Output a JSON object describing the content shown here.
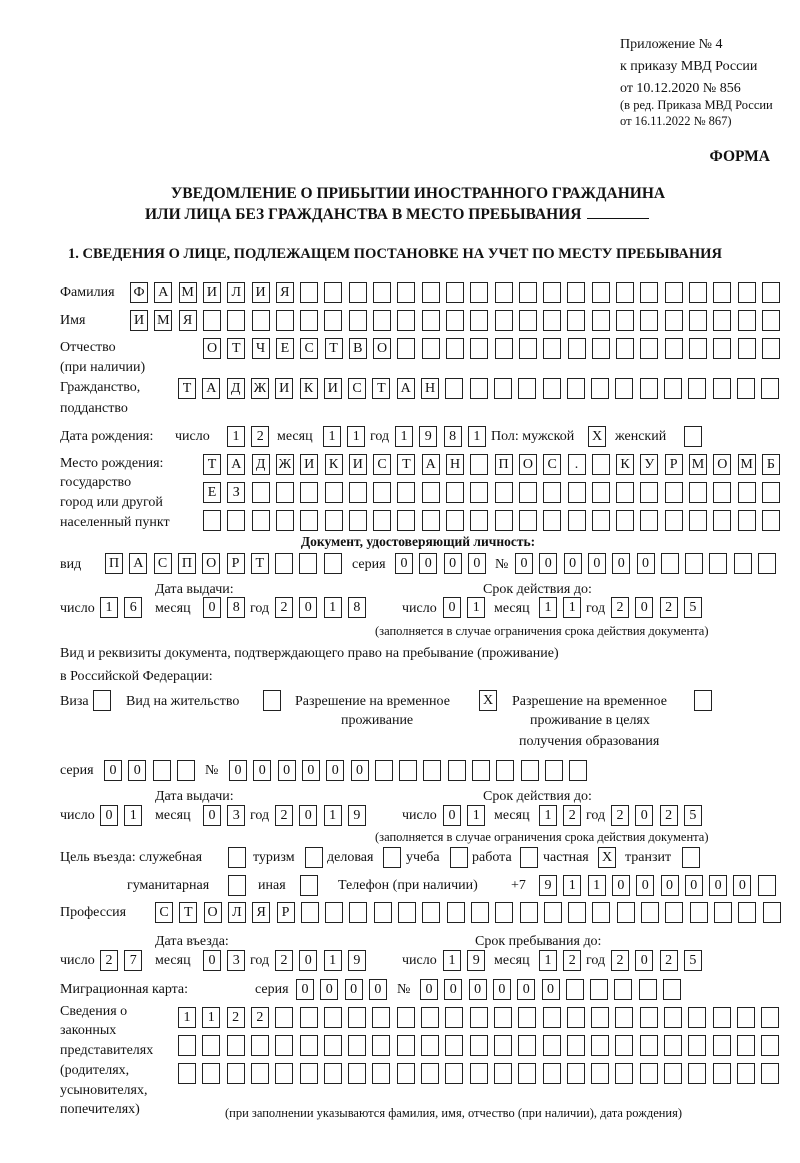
{
  "header": {
    "appendix": "Приложение № 4",
    "order": "к приказу МВД России",
    "order_date": "от 10.12.2020 № 856",
    "edition1": "(в ред. Приказа МВД России",
    "edition2": "от 16.11.2022 № 867)",
    "form": "ФОРМА",
    "title1": "УВЕДОМЛЕНИЕ О ПРИБЫТИИ ИНОСТРАННОГО ГРАЖДАНИНА",
    "title2": "ИЛИ ЛИЦА БЕЗ ГРАЖДАНСТВА В МЕСТО ПРЕБЫВАНИЯ",
    "section1": "1. СВЕДЕНИЯ О ЛИЦЕ, ПОДЛЕЖАЩЕМ ПОСТАНОВКЕ НА УЧЕТ ПО МЕСТУ ПРЕБЫВАНИЯ"
  },
  "person": {
    "surname": {
      "label": "Фамилия",
      "value": "ФАМИЛИЯ"
    },
    "name": {
      "label": "Имя",
      "value": "ИМЯ"
    },
    "patronymic": {
      "label1": "Отчество",
      "label2": "(при наличии)",
      "value": "ОТЧЕСТВО"
    },
    "citizenship": {
      "label1": "Гражданство,",
      "label2": "подданство",
      "value": "ТАДЖИКИСТАН"
    },
    "birth": {
      "label": "Дата рождения:",
      "day_label": "число",
      "month_label": "месяц",
      "year_label": "год",
      "day": "12",
      "month": "11",
      "year": "1981",
      "sex_label": "Пол: мужской",
      "male": "X",
      "female_label": "женский",
      "female": ""
    },
    "birthplace": {
      "label1": "Место рождения:",
      "label2": "государство",
      "label3": "город или другой",
      "label4": "населенный пункт",
      "row1": "ТАДЖИКИСТАН ПОС. КУРМОМБ",
      "row2": "ЕЗ",
      "row3": ""
    }
  },
  "id_doc": {
    "heading": "Документ, удостоверяющий личность:",
    "kind_label": "вид",
    "kind": "ПАСПОРТ",
    "series_label": "серия",
    "series": "0000",
    "number_label": "№",
    "number": "000000",
    "issue_label": "Дата выдачи:",
    "valid_label": "Срок действия до:",
    "day_label": "число",
    "month_label": "месяц",
    "year_label": "год",
    "issue_day": "16",
    "issue_month": "08",
    "issue_year": "2018",
    "valid_day": "01",
    "valid_month": "11",
    "valid_year": "2025",
    "note": "(заполняется в случае ограничения срока действия документа)"
  },
  "stay_doc": {
    "heading1": "Вид и реквизиты документа, подтверждающего право на пребывание (проживание)",
    "heading2": "в Российской Федерации:",
    "visa_label": "Виза",
    "visa": "",
    "residence_label": "Вид на жительство",
    "residence": "",
    "temp_label1": "Разрешение на временное",
    "temp_label2": "проживание",
    "temp": "X",
    "edu_label1": "Разрешение на временное",
    "edu_label2": "проживание в целях",
    "edu_label3": "получения образования",
    "edu": "",
    "series_label": "серия",
    "series": "00",
    "number_label": "№",
    "number": "000000",
    "issue_label": "Дата выдачи:",
    "valid_label": "Срок действия до:",
    "day_label": "число",
    "month_label": "месяц",
    "year_label": "год",
    "issue_day": "01",
    "issue_month": "03",
    "issue_year": "2019",
    "valid_day": "01",
    "valid_month": "12",
    "valid_year": "2025",
    "note": "(заполняется в случае ограничения срока действия документа)"
  },
  "purpose": {
    "label": "Цель въезда: служебная",
    "options": [
      {
        "label": "туризм",
        "value": ""
      },
      {
        "label": "деловая",
        "value": ""
      },
      {
        "label": "учеба",
        "value": ""
      },
      {
        "label": "работа",
        "value": ""
      },
      {
        "label": "частная",
        "value": "X"
      },
      {
        "label": "транзит",
        "value": ""
      },
      {
        "label": "гуманитарная",
        "value": ""
      },
      {
        "label": "иная",
        "value": ""
      }
    ],
    "official": ""
  },
  "phone": {
    "label": "Телефон (при наличии)",
    "prefix": "+7",
    "value": "911000000"
  },
  "profession": {
    "label": "Профессия",
    "value": "СТОЛЯР"
  },
  "entry": {
    "entry_label": "Дата въезда:",
    "stay_label": "Срок пребывания до:",
    "day_label": "число",
    "month_label": "месяц",
    "year_label": "год",
    "entry_day": "27",
    "entry_month": "03",
    "entry_year": "2019",
    "stay_day": "19",
    "stay_month": "12",
    "stay_year": "2025"
  },
  "migration_card": {
    "label": "Миграционная карта:",
    "series_label": "серия",
    "series": "0000",
    "number_label": "№",
    "number": "000000"
  },
  "representatives": {
    "label1": "Сведения о",
    "label2": "законных",
    "label3": "представителях",
    "label4": "(родителях,",
    "label5": "усыновителях,",
    "label6": "попечителях)",
    "row1": "1122",
    "row2": "",
    "row3": "",
    "note": "(при заполнении указываются фамилия, имя, отчество (при наличии), дата рождения)"
  }
}
